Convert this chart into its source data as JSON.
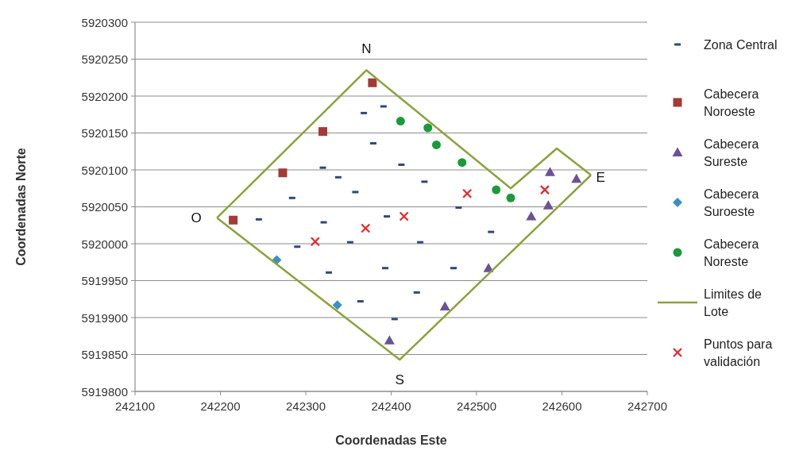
{
  "chart_data": {
    "type": "scatter",
    "xlabel": "Coordenadas Este",
    "ylabel": "Coordenadas Norte",
    "xlim": [
      242100,
      242700
    ],
    "xticks": [
      242100,
      242200,
      242300,
      242400,
      242500,
      242600,
      242700
    ],
    "ylim": [
      5919800,
      5920300
    ],
    "yticks": [
      5919800,
      5919850,
      5919900,
      5919950,
      5920000,
      5920050,
      5920100,
      5920150,
      5920200,
      5920250,
      5920300
    ],
    "grid": "y",
    "legend": "right",
    "series": [
      {
        "name": "Zona Central",
        "color": "#2e4a7a",
        "x": [
          242368,
          242391,
          242379,
          242320,
          242338,
          242358,
          242284,
          242412,
          242439,
          242479,
          242245,
          242321,
          242395,
          242290,
          242352,
          242327,
          242393,
          242364,
          242404,
          242517,
          242434,
          242473,
          242430
        ],
        "values": [
          5920177,
          5920186,
          5920136,
          5920103,
          5920090,
          5920070,
          5920062,
          5920107,
          5920084,
          5920049,
          5920033,
          5920029,
          5920037,
          5919996,
          5920002,
          5919961,
          5919967,
          5919922,
          5919898,
          5920016,
          5920002,
          5919967,
          5919934
        ]
      },
      {
        "name": "Cabecera Noroeste",
        "color": "#a33b36",
        "marker": "square",
        "x": [
          242378,
          242320,
          242273,
          242215
        ],
        "values": [
          5920218,
          5920152,
          5920096,
          5920032
        ]
      },
      {
        "name": "Cabecera Sureste",
        "color": "#6a5296",
        "marker": "triangle",
        "x": [
          242586,
          242617,
          242584,
          242564,
          242514,
          242463,
          242398
        ],
        "values": [
          5920097,
          5920088,
          5920052,
          5920037,
          5919967,
          5919915,
          5919869
        ]
      },
      {
        "name": "Cabecera Suroeste",
        "color": "#3d8fbf",
        "marker": "diamond",
        "x": [
          242266,
          242337
        ],
        "values": [
          5919978,
          5919917
        ]
      },
      {
        "name": "Cabecera Noreste",
        "color": "#1a9a3a",
        "marker": "circle",
        "x": [
          242411,
          242443,
          242453,
          242483,
          242523,
          242540
        ],
        "values": [
          5920166,
          5920157,
          5920134,
          5920110,
          5920073,
          5920062
        ]
      },
      {
        "name": "Limites de Lote",
        "type": "line",
        "color": "#8aa33c",
        "marker": "none",
        "x": [
          242196,
          242371,
          242540,
          242594,
          242634
        ],
        "values": [
          5920035,
          5920235,
          5920075,
          5920129,
          5920093
        ]
      },
      {
        "type": "line",
        "color": "#8aa33c",
        "marker": "none",
        "x": [
          242196,
          242410,
          242634
        ],
        "values": [
          5920035,
          5919843,
          5920093
        ]
      },
      {
        "name": "Puntos para validación",
        "color": "#e8262b",
        "marker": "cross",
        "x": [
          242311,
          242370,
          242415,
          242489,
          242580
        ],
        "values": [
          5920003,
          5920021,
          5920037,
          5920068,
          5920073
        ]
      }
    ],
    "annotations": [
      "N",
      "O",
      "S",
      "E"
    ]
  }
}
